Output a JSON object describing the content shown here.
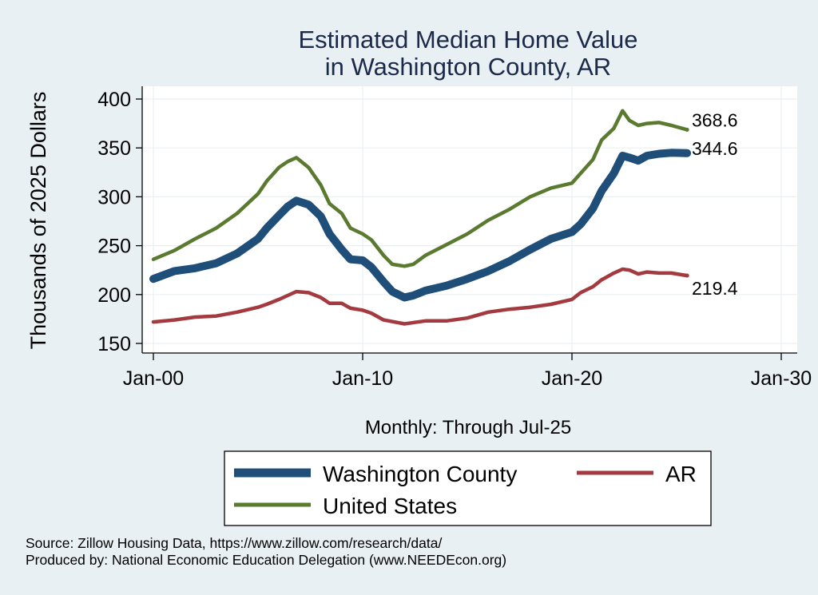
{
  "chart_data": {
    "type": "line",
    "title": [
      "Estimated Median Home Value",
      "in Washington County, AR"
    ],
    "ylabel": "Thousands of 2025 Dollars",
    "xlabel": "Monthly: Through Jul-25",
    "ylim": [
      140,
      410
    ],
    "yticks": [
      150,
      200,
      250,
      300,
      350,
      400
    ],
    "xlim": [
      "2000-01",
      "2030-01"
    ],
    "xticks": [
      {
        "date": "2000-01",
        "label": "Jan-00"
      },
      {
        "date": "2010-01",
        "label": "Jan-10"
      },
      {
        "date": "2020-01",
        "label": "Jan-20"
      },
      {
        "date": "2030-01",
        "label": "Jan-30"
      }
    ],
    "grid": true,
    "legend_position": "bottom",
    "series": [
      {
        "name": "Washington County",
        "color": "#1f4e79",
        "end_label": "344.6",
        "points": [
          [
            "2000-01",
            216
          ],
          [
            "2001-01",
            224
          ],
          [
            "2002-01",
            227
          ],
          [
            "2003-01",
            232
          ],
          [
            "2004-01",
            242
          ],
          [
            "2005-01",
            257
          ],
          [
            "2005-06",
            268
          ],
          [
            "2006-01",
            281
          ],
          [
            "2006-06",
            290
          ],
          [
            "2006-11",
            296
          ],
          [
            "2007-06",
            292
          ],
          [
            "2008-01",
            280
          ],
          [
            "2008-06",
            262
          ],
          [
            "2009-01",
            246
          ],
          [
            "2009-06",
            236
          ],
          [
            "2010-01",
            235
          ],
          [
            "2010-06",
            228
          ],
          [
            "2011-01",
            213
          ],
          [
            "2011-06",
            203
          ],
          [
            "2012-01",
            197
          ],
          [
            "2012-06",
            199
          ],
          [
            "2013-01",
            204
          ],
          [
            "2014-01",
            209
          ],
          [
            "2015-01",
            216
          ],
          [
            "2016-01",
            224
          ],
          [
            "2017-01",
            234
          ],
          [
            "2018-01",
            246
          ],
          [
            "2019-01",
            257
          ],
          [
            "2020-01",
            264
          ],
          [
            "2020-06",
            272
          ],
          [
            "2021-01",
            288
          ],
          [
            "2021-06",
            306
          ],
          [
            "2022-01",
            324
          ],
          [
            "2022-06",
            342
          ],
          [
            "2022-10",
            340
          ],
          [
            "2023-03",
            337
          ],
          [
            "2023-08",
            342
          ],
          [
            "2024-03",
            344
          ],
          [
            "2024-10",
            345
          ],
          [
            "2025-07",
            344.6
          ]
        ]
      },
      {
        "name": "AR",
        "color": "#a33a3f",
        "end_label": "219.4",
        "points": [
          [
            "2000-01",
            172
          ],
          [
            "2001-01",
            174
          ],
          [
            "2002-01",
            177
          ],
          [
            "2003-01",
            178
          ],
          [
            "2004-01",
            182
          ],
          [
            "2005-01",
            187
          ],
          [
            "2005-06",
            190
          ],
          [
            "2006-01",
            195
          ],
          [
            "2006-06",
            199
          ],
          [
            "2006-11",
            203
          ],
          [
            "2007-06",
            202
          ],
          [
            "2008-01",
            197
          ],
          [
            "2008-06",
            191
          ],
          [
            "2009-01",
            191
          ],
          [
            "2009-06",
            186
          ],
          [
            "2010-01",
            184
          ],
          [
            "2010-06",
            181
          ],
          [
            "2011-01",
            174
          ],
          [
            "2012-01",
            170
          ],
          [
            "2013-01",
            173
          ],
          [
            "2014-01",
            173
          ],
          [
            "2015-01",
            176
          ],
          [
            "2016-01",
            182
          ],
          [
            "2017-01",
            185
          ],
          [
            "2018-01",
            187
          ],
          [
            "2019-01",
            190
          ],
          [
            "2020-01",
            195
          ],
          [
            "2020-06",
            202
          ],
          [
            "2021-01",
            208
          ],
          [
            "2021-06",
            215
          ],
          [
            "2022-01",
            222
          ],
          [
            "2022-06",
            226
          ],
          [
            "2022-10",
            225
          ],
          [
            "2023-03",
            221
          ],
          [
            "2023-08",
            223
          ],
          [
            "2024-03",
            222
          ],
          [
            "2024-10",
            222
          ],
          [
            "2025-07",
            219.4
          ]
        ]
      },
      {
        "name": "United States",
        "color": "#5a7a2f",
        "end_label": "368.6",
        "points": [
          [
            "2000-01",
            236
          ],
          [
            "2001-01",
            245
          ],
          [
            "2002-01",
            257
          ],
          [
            "2003-01",
            268
          ],
          [
            "2004-01",
            283
          ],
          [
            "2005-01",
            303
          ],
          [
            "2005-06",
            316
          ],
          [
            "2006-01",
            330
          ],
          [
            "2006-06",
            336
          ],
          [
            "2006-11",
            340
          ],
          [
            "2007-06",
            330
          ],
          [
            "2008-01",
            312
          ],
          [
            "2008-06",
            293
          ],
          [
            "2009-01",
            283
          ],
          [
            "2009-06",
            268
          ],
          [
            "2010-01",
            262
          ],
          [
            "2010-06",
            256
          ],
          [
            "2011-01",
            240
          ],
          [
            "2011-06",
            231
          ],
          [
            "2012-01",
            229
          ],
          [
            "2012-06",
            231
          ],
          [
            "2013-01",
            240
          ],
          [
            "2014-01",
            251
          ],
          [
            "2015-01",
            262
          ],
          [
            "2016-01",
            276
          ],
          [
            "2017-01",
            287
          ],
          [
            "2018-01",
            300
          ],
          [
            "2019-01",
            309
          ],
          [
            "2020-01",
            314
          ],
          [
            "2020-06",
            324
          ],
          [
            "2021-01",
            338
          ],
          [
            "2021-06",
            358
          ],
          [
            "2022-01",
            370
          ],
          [
            "2022-06",
            388
          ],
          [
            "2022-10",
            378
          ],
          [
            "2023-03",
            373
          ],
          [
            "2023-08",
            375
          ],
          [
            "2024-03",
            376
          ],
          [
            "2024-10",
            373
          ],
          [
            "2025-07",
            368.6
          ]
        ]
      }
    ]
  },
  "legend": {
    "items": [
      {
        "label": "Washington County",
        "color": "#1f4e79"
      },
      {
        "label": "AR",
        "color": "#a33a3f"
      },
      {
        "label": "United States",
        "color": "#5a7a2f"
      }
    ]
  },
  "footer": {
    "source": "Source: Zillow Housing Data, https://www.zillow.com/research/data/",
    "produced": "Produced by: National Economic Education Delegation (www.NEEDEcon.org)"
  }
}
